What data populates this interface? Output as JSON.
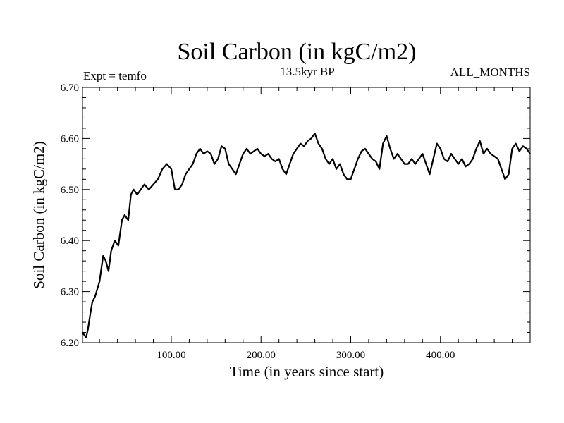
{
  "chart_data": {
    "type": "line",
    "title": "Soil Carbon (in kgC/m2)",
    "subtitle": "13.5kyr BP",
    "left_annotation": "Expt = temfo",
    "right_annotation": "ALL_MONTHS",
    "xlabel": "Time (in years since start)",
    "ylabel": "Soil Carbon (in kgC/m2)",
    "xlim": [
      1,
      500
    ],
    "ylim": [
      6.2,
      6.7
    ],
    "x_ticks": [
      100,
      200,
      300,
      400
    ],
    "x_tick_labels": [
      "100.00",
      "200.00",
      "300.00",
      "400.00"
    ],
    "y_ticks": [
      6.2,
      6.3,
      6.4,
      6.5,
      6.6,
      6.7
    ],
    "y_tick_labels": [
      "6.20",
      "6.30",
      "6.40",
      "6.50",
      "6.60",
      "6.70"
    ],
    "grid": false,
    "series": [
      {
        "name": "Soil Carbon",
        "color": "#000000",
        "x": [
          1,
          3,
          5,
          7,
          10,
          12,
          15,
          20,
          24,
          27,
          30,
          33,
          37,
          41,
          45,
          48,
          52,
          55,
          58,
          62,
          66,
          70,
          75,
          80,
          85,
          90,
          95,
          100,
          104,
          108,
          112,
          116,
          120,
          124,
          128,
          132,
          136,
          140,
          144,
          148,
          152,
          156,
          160,
          164,
          168,
          172,
          176,
          180,
          184,
          188,
          192,
          196,
          200,
          204,
          208,
          212,
          216,
          220,
          224,
          228,
          232,
          236,
          240,
          244,
          248,
          252,
          256,
          260,
          264,
          268,
          272,
          276,
          280,
          284,
          288,
          292,
          296,
          300,
          304,
          308,
          312,
          316,
          320,
          324,
          328,
          332,
          336,
          340,
          344,
          348,
          352,
          356,
          360,
          364,
          368,
          372,
          376,
          380,
          384,
          388,
          392,
          396,
          400,
          404,
          408,
          412,
          416,
          420,
          424,
          428,
          432,
          436,
          440,
          444,
          448,
          452,
          456,
          460,
          464,
          468,
          472,
          476,
          480,
          484,
          488,
          492,
          496,
          500
        ],
        "values": [
          6.22,
          6.215,
          6.21,
          6.225,
          6.26,
          6.28,
          6.29,
          6.32,
          6.37,
          6.36,
          6.34,
          6.38,
          6.4,
          6.39,
          6.44,
          6.45,
          6.44,
          6.49,
          6.5,
          6.49,
          6.5,
          6.51,
          6.5,
          6.51,
          6.52,
          6.54,
          6.55,
          6.54,
          6.5,
          6.5,
          6.51,
          6.53,
          6.54,
          6.55,
          6.57,
          6.58,
          6.57,
          6.575,
          6.57,
          6.55,
          6.56,
          6.585,
          6.58,
          6.55,
          6.54,
          6.53,
          6.55,
          6.57,
          6.58,
          6.57,
          6.575,
          6.58,
          6.57,
          6.565,
          6.57,
          6.56,
          6.555,
          6.56,
          6.54,
          6.53,
          6.55,
          6.57,
          6.58,
          6.59,
          6.585,
          6.595,
          6.6,
          6.61,
          6.59,
          6.58,
          6.56,
          6.55,
          6.56,
          6.54,
          6.55,
          6.53,
          6.52,
          6.52,
          6.54,
          6.56,
          6.575,
          6.58,
          6.57,
          6.56,
          6.555,
          6.54,
          6.59,
          6.605,
          6.58,
          6.56,
          6.57,
          6.56,
          6.55,
          6.55,
          6.56,
          6.55,
          6.56,
          6.57,
          6.55,
          6.53,
          6.56,
          6.59,
          6.58,
          6.56,
          6.555,
          6.57,
          6.56,
          6.55,
          6.56,
          6.545,
          6.55,
          6.56,
          6.58,
          6.595,
          6.57,
          6.58,
          6.57,
          6.565,
          6.56,
          6.54,
          6.52,
          6.53,
          6.58,
          6.59,
          6.575,
          6.585,
          6.58,
          6.57
        ]
      }
    ]
  }
}
